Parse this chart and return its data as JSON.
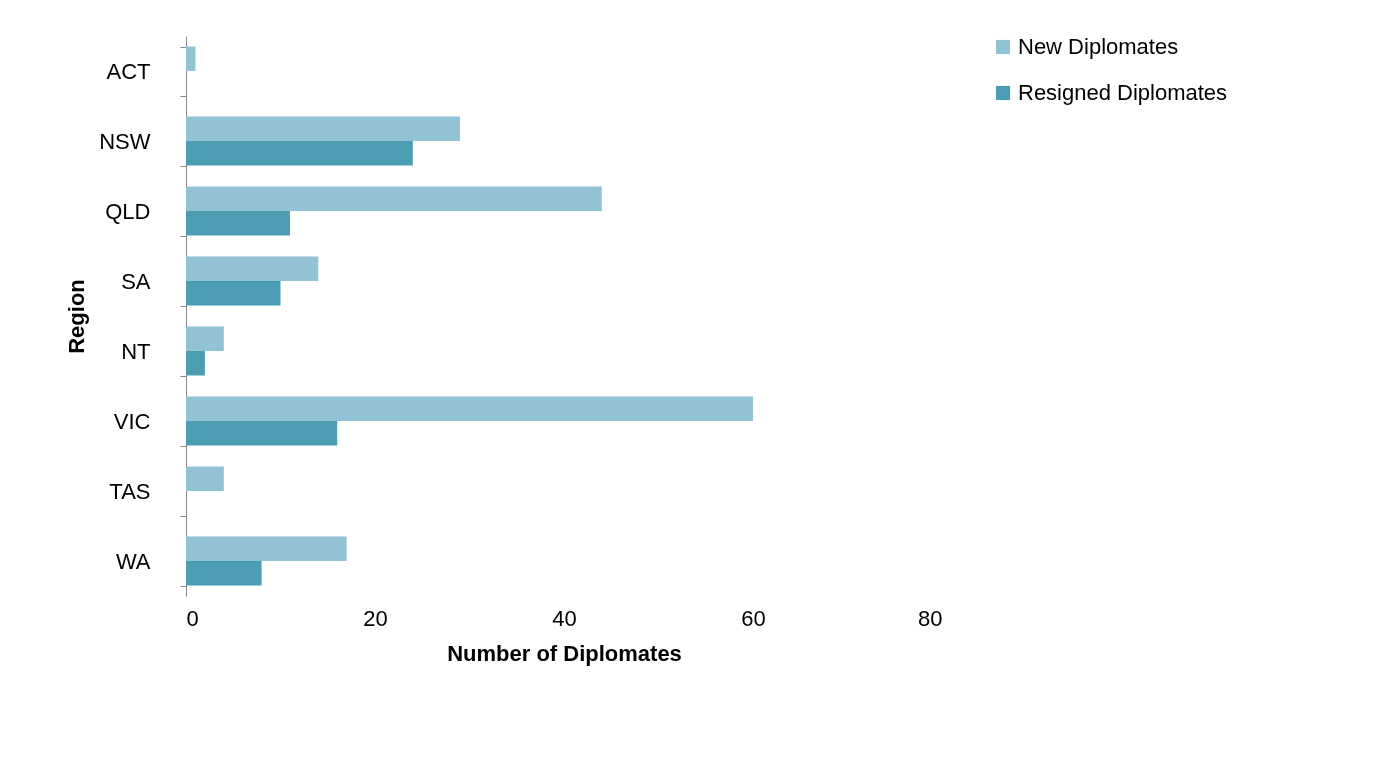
{
  "chart_data": {
    "type": "bar",
    "orientation": "horizontal",
    "xlabel": "Number of Diplomates",
    "ylabel": "Region",
    "categories": [
      "ACT",
      "NSW",
      "QLD",
      "SA",
      "NT",
      "VIC",
      "TAS",
      "WA"
    ],
    "series": [
      {
        "name": "New Diplomates",
        "color": "#92c3d5",
        "values": [
          1,
          29,
          44,
          14,
          4,
          60,
          4,
          17
        ]
      },
      {
        "name": "Resigned Diplomates",
        "color": "#4a9db3",
        "values": [
          0,
          24,
          11,
          10,
          2,
          16,
          0,
          8
        ]
      }
    ],
    "xlim": [
      0,
      80
    ],
    "xticks": [
      0,
      20,
      40,
      60,
      80
    ],
    "grid": false,
    "legend": "right"
  }
}
